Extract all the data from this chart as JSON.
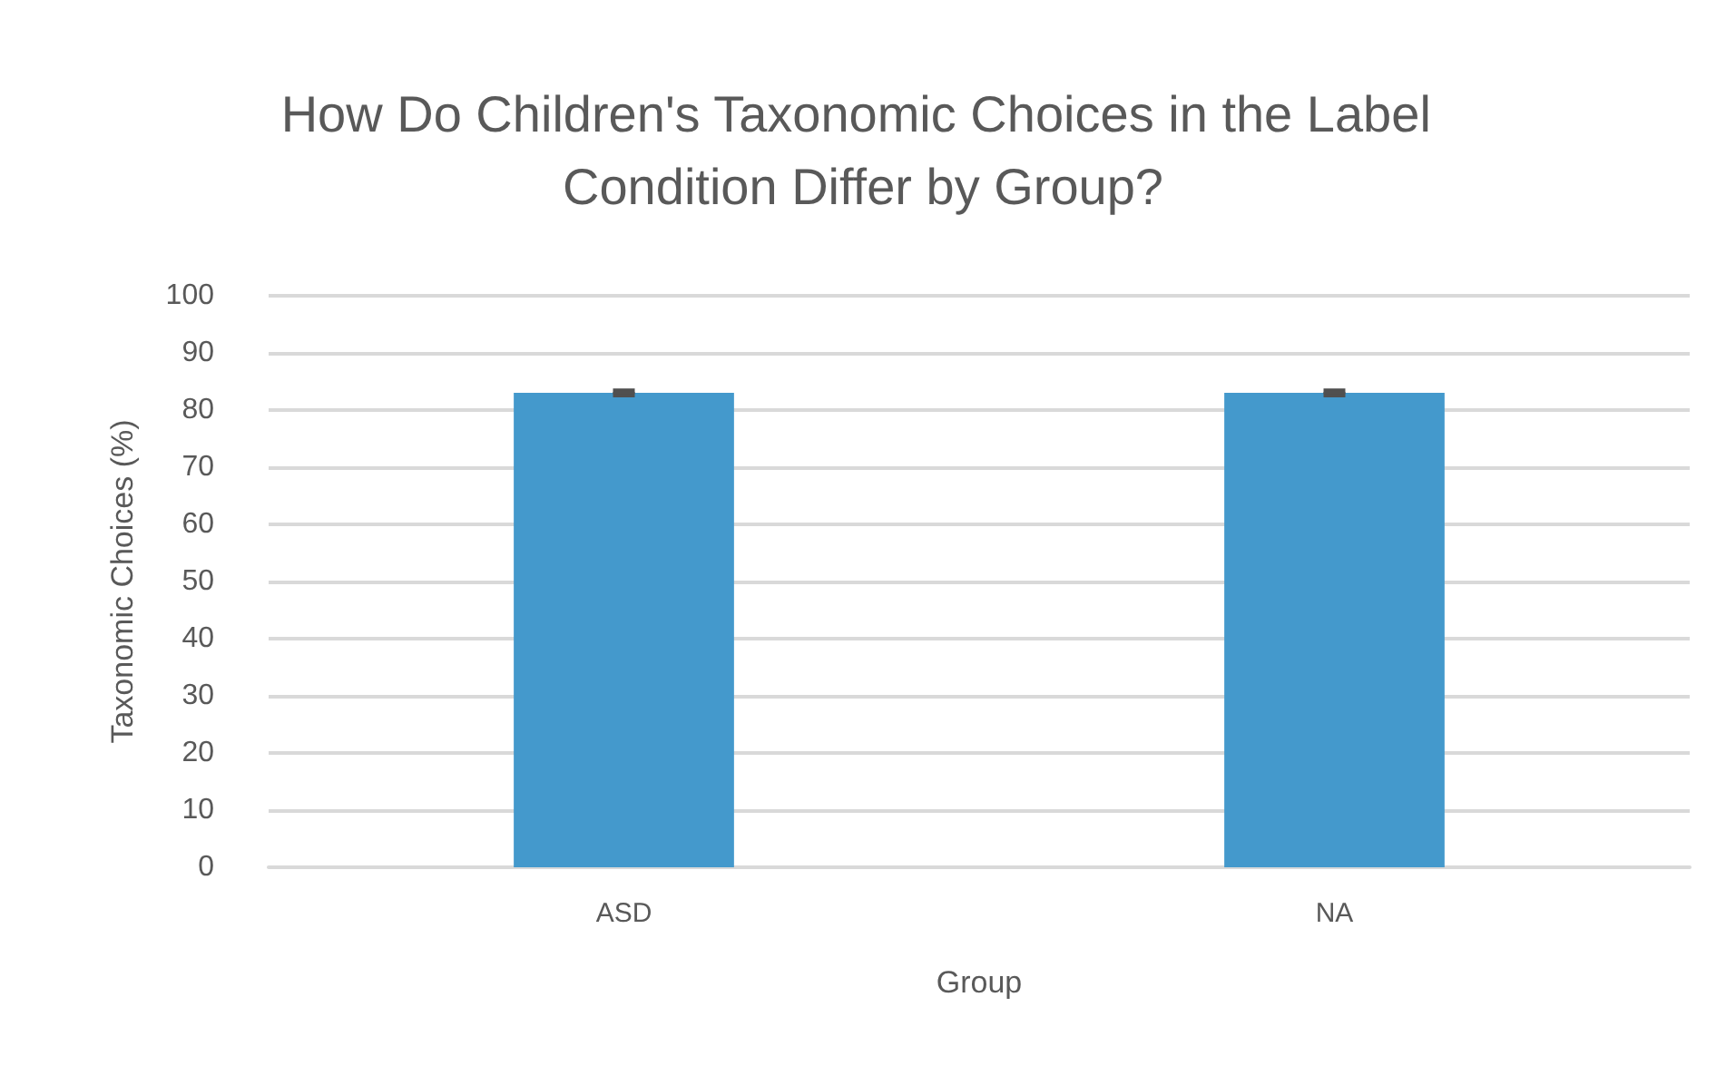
{
  "chart_data": {
    "type": "bar",
    "title": "How Do Children's Taxonomic Choices in the Label Condition Differ by Group?",
    "xlabel": "Group",
    "ylabel": "Taxonomic Choices (%)",
    "categories": [
      "ASD",
      "NA"
    ],
    "values": [
      83,
      83
    ],
    "errors": [
      0.3,
      0.3
    ],
    "color": "#4499cc",
    "ylim": [
      0,
      100
    ],
    "yticks": [
      0,
      10,
      20,
      30,
      40,
      50,
      60,
      70,
      80,
      90,
      100
    ],
    "grid": "y"
  }
}
